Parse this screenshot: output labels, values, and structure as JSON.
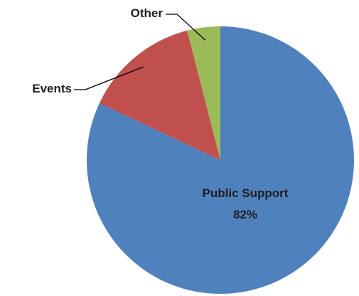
{
  "chart_data": {
    "type": "pie",
    "slices": [
      {
        "label": "Public Support",
        "value": 82,
        "value_label": "82%",
        "color": "#4f81bd"
      },
      {
        "label": "Events",
        "value": 14,
        "value_label": "",
        "color": "#c0504d"
      },
      {
        "label": "Other",
        "value": 4,
        "value_label": "",
        "color": "#9bbb59"
      }
    ],
    "start_angle_deg": 0,
    "direction": "clockwise",
    "legend": "none"
  }
}
